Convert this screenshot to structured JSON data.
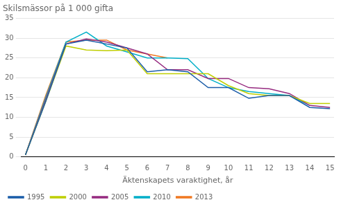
{
  "chart_data": {
    "type": "line",
    "title": "Skilsmässor på 1 000 gifta",
    "xlabel": "Äktenskapets varaktighet, år",
    "xlim": [
      -0.2,
      15.2
    ],
    "xticks": [
      0,
      1,
      2,
      3,
      4,
      5,
      6,
      7,
      8,
      9,
      10,
      11,
      12,
      13,
      14,
      15
    ],
    "ylim": [
      0,
      35
    ],
    "yticks": [
      0,
      5,
      10,
      15,
      20,
      25,
      30,
      35
    ],
    "grid": "y",
    "legend": "lower left",
    "series": [
      {
        "name": "1995",
        "color": "#1a5ca8",
        "x": [
          0,
          1,
          2,
          3,
          4,
          5,
          6,
          7,
          8,
          9,
          10,
          11,
          12,
          13,
          14,
          15
        ],
        "values": [
          0.5,
          14.0,
          28.5,
          29.5,
          28.5,
          27.5,
          21.5,
          22.0,
          21.5,
          17.5,
          17.5,
          14.8,
          15.5,
          15.5,
          12.5,
          12.2
        ]
      },
      {
        "name": "2000",
        "color": "#bfce00",
        "x": [
          0,
          1,
          2,
          3,
          4,
          5,
          6,
          7,
          8,
          9,
          10,
          11,
          12,
          13,
          14,
          15
        ],
        "values": [
          0.5,
          14.0,
          28.0,
          27.0,
          26.8,
          27.0,
          21.0,
          21.0,
          21.0,
          21.0,
          18.0,
          16.0,
          15.5,
          15.5,
          13.5,
          13.5
        ]
      },
      {
        "name": "2005",
        "color": "#962b80",
        "x": [
          0,
          1,
          2,
          3,
          4,
          5,
          6,
          7,
          8,
          9,
          10,
          11,
          12,
          13,
          14,
          15
        ],
        "values": [
          0.5,
          14.5,
          28.5,
          29.8,
          29.0,
          27.5,
          26.0,
          22.0,
          22.0,
          19.8,
          19.8,
          17.5,
          17.2,
          16.0,
          13.0,
          12.5
        ]
      },
      {
        "name": "2010",
        "color": "#00afc8",
        "x": [
          0,
          1,
          2,
          3,
          4,
          5,
          6,
          7,
          8,
          9,
          10,
          11,
          12,
          13,
          14
        ],
        "values": [
          0.5,
          15.0,
          29.0,
          31.5,
          28.0,
          26.5,
          25.0,
          25.0,
          24.8,
          19.8,
          17.5,
          16.5,
          16.0,
          15.5,
          13.0
        ]
      },
      {
        "name": "2013",
        "color": "#f07820",
        "x": [
          0,
          1,
          2,
          3,
          4,
          5,
          6,
          7
        ],
        "values": [
          0.5,
          15.5,
          29.0,
          29.5,
          29.5,
          27.0,
          26.0,
          25.0
        ]
      }
    ]
  }
}
